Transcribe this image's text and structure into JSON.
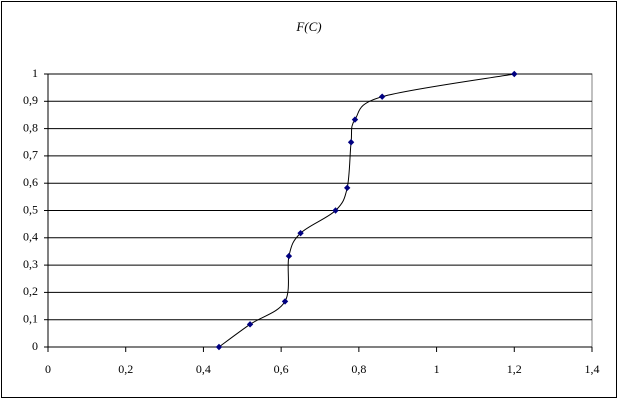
{
  "chart_data": {
    "type": "line",
    "title": "F(C)",
    "x": [
      0.44,
      0.52,
      0.61,
      0.62,
      0.65,
      0.74,
      0.77,
      0.78,
      0.79,
      0.86,
      1.2
    ],
    "series": [
      {
        "color": "#000080",
        "values": [
          0,
          0.083,
          0.167,
          0.333,
          0.417,
          0.5,
          0.583,
          0.75,
          0.833,
          0.917,
          1
        ]
      }
    ],
    "smooth": true,
    "xlim": [
      0,
      1.4
    ],
    "xticks": [
      0,
      {
        "value": 0.2,
        "label": "0,2"
      },
      {
        "value": 0.4,
        "label": "0,4"
      },
      {
        "value": 0.6,
        "label": "0,6"
      },
      {
        "value": 0.8,
        "label": "0,8"
      },
      1,
      {
        "value": 1.2,
        "label": "1,2"
      },
      {
        "value": 1.4,
        "label": "1,4"
      }
    ],
    "ylim": [
      0,
      1
    ],
    "yticks": [
      0,
      {
        "value": 0.1,
        "label": "0,1"
      },
      {
        "value": 0.2,
        "label": "0,2"
      },
      {
        "value": 0.3,
        "label": "0,3"
      },
      {
        "value": 0.4,
        "label": "0,4"
      },
      {
        "value": 0.5,
        "label": "0,5"
      },
      {
        "value": 0.6,
        "label": "0,6"
      },
      {
        "value": 0.7,
        "label": "0,7"
      },
      {
        "value": 0.8,
        "label": "0,8"
      },
      {
        "value": 0.9,
        "label": "0,9"
      },
      1
    ],
    "grid": true
  }
}
